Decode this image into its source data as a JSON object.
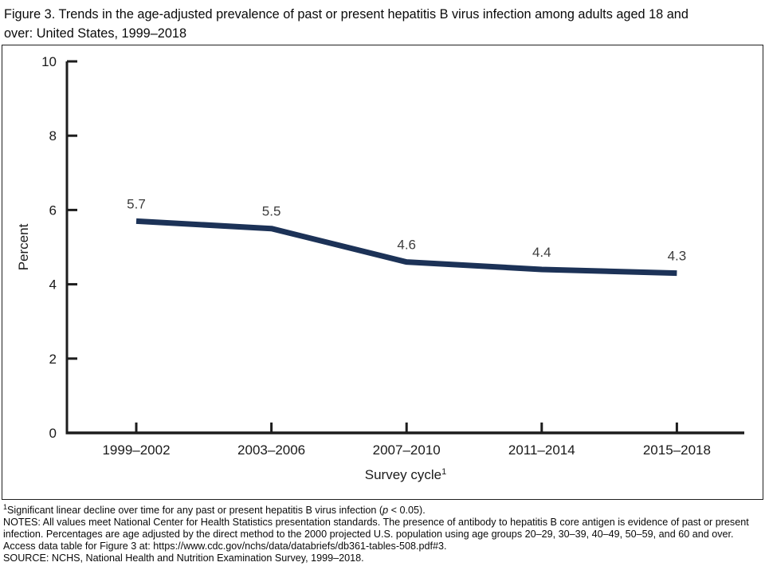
{
  "header": {
    "title_lines": [
      "Figure 3. Trends in the age-adjusted prevalence of past or present hepatitis B virus infection among adults aged 18 and",
      "over: United States, 1999–2018"
    ]
  },
  "chart_data": {
    "type": "line",
    "title": "Figure 3. Trends in the age-adjusted prevalence of past or present hepatitis B virus infection among adults aged 18 and over: United States, 1999–2018",
    "categories": [
      "1999–2002",
      "2003–2006",
      "2007–2010",
      "2011–2014",
      "2015–2018"
    ],
    "values": [
      5.7,
      5.5,
      4.6,
      4.4,
      4.3
    ],
    "value_labels": [
      "5.7",
      "5.5",
      "4.6",
      "4.4",
      "4.3"
    ],
    "xlabel": "Survey cycle",
    "xlabel_superscript": "1",
    "ylabel": "Percent",
    "ylim": [
      0,
      10
    ],
    "yticks": [
      0,
      2,
      4,
      6,
      8,
      10
    ],
    "grid": "off",
    "legend": "none",
    "line_color": "#1c3257",
    "line_width": 7,
    "axis_color": "#1d1d1d",
    "tick_label_color": "#1a1a1a",
    "value_label_color": "#3d3d3d"
  },
  "footnotes": {
    "f1_sup": "1",
    "f1_text_before_p": "Significant linear decline over time for any past or present hepatitis B virus infection (",
    "f1_p": "p",
    "f1_text_after_p": " < 0.05).",
    "notes": "NOTES: All values meet National Center for Health Statistics presentation standards. The presence of antibody to hepatitis B core antigen is evidence of past or present infection. Percentages are age adjusted by the direct method to the 2000 projected U.S. population using age groups 20–29, 30–39, 40–49, 50–59, and 60 and over. Access data table for Figure 3 at: https://www.cdc.gov/nchs/data/databriefs/db361-tables-508.pdf#3.",
    "source": "SOURCE: NCHS, National Health and Nutrition Examination Survey, 1999–2018."
  }
}
